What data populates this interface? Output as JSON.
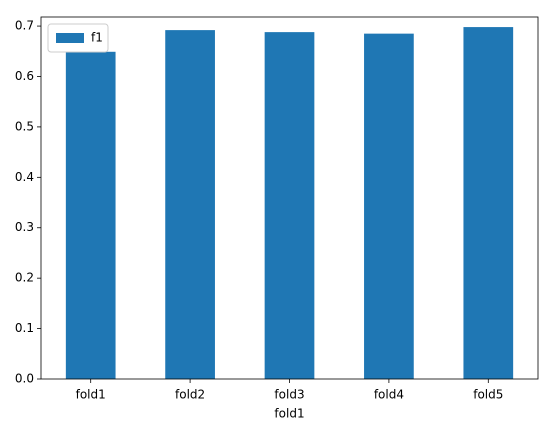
{
  "chart_data": {
    "type": "bar",
    "xlabel": "fold1",
    "categories": [
      "fold1",
      "fold2",
      "fold3",
      "fold4",
      "fold5"
    ],
    "series": [
      {
        "name": "f1",
        "color": "#1f77b4",
        "values": [
          0.649,
          0.692,
          0.688,
          0.685,
          0.698
        ]
      }
    ],
    "ylim": [
      0,
      0.718
    ],
    "yticks": [
      {
        "value": 0,
        "label": "0.0"
      },
      0.1,
      0.2,
      0.3,
      0.4,
      0.5,
      0.6,
      0.7
    ],
    "grid": false,
    "legend": "upper left"
  }
}
